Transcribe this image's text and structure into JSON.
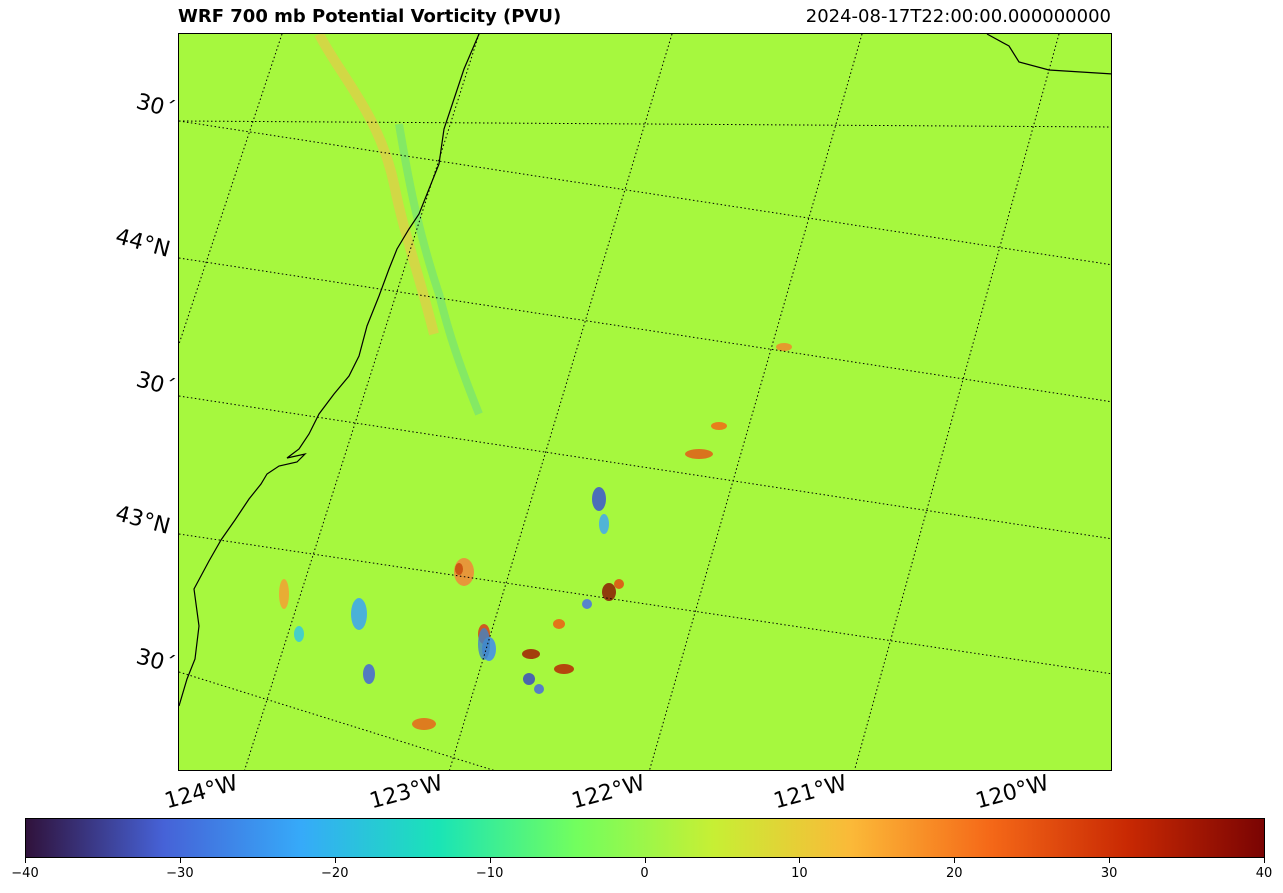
{
  "header": {
    "title": "WRF 700 mb Potential Vorticity (PVU)",
    "timestamp": "2024-08-17T22:00:00.000000000"
  },
  "map": {
    "background_color": "#a6f83e",
    "coastline_color": "#000000",
    "lat_labels": [
      "30´",
      "44°N",
      "30´",
      "43°N",
      "30´"
    ],
    "lon_labels": [
      "124°W",
      "123°W",
      "122°W",
      "121°W",
      "120°W"
    ]
  },
  "colorbar": {
    "min": -40,
    "max": 40,
    "tick_labels": [
      "−40",
      "−30",
      "−20",
      "−10",
      "0",
      "10",
      "20",
      "30",
      "40"
    ],
    "colors": [
      "#30123b",
      "#4662d7",
      "#36aaf9",
      "#1ae4b6",
      "#72fe5e",
      "#c7ef34",
      "#fbb938",
      "#f56918",
      "#c92903",
      "#7a0403"
    ]
  }
}
